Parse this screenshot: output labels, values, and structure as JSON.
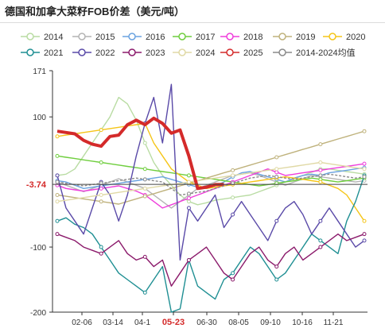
{
  "title": "德国和加拿大菜籽FOB价差（美元/吨）",
  "chart_data": {
    "type": "line",
    "title": "德国和加拿大菜籽FOB价差（美元/吨）",
    "xlabel": "",
    "ylabel": "",
    "ylim": [
      -200,
      171
    ],
    "y_ticks": [
      171,
      100,
      -100,
      -200
    ],
    "x_ticks": [
      "02-06",
      "03-14",
      "04-1",
      "05-23",
      "06-30",
      "08-05",
      "09-10",
      "10-16",
      "11-21"
    ],
    "highlight_x_label": "05-23",
    "reference_value": -3.74,
    "reference_label": "-3.74",
    "grid": false,
    "legend_position": "top",
    "series": [
      {
        "name": "2014",
        "color": "#b9dca3",
        "values": [
          10,
          12,
          20,
          40,
          60,
          80,
          100,
          130,
          120,
          95,
          60,
          30,
          10,
          -5,
          -20,
          -30,
          -35,
          -32,
          -28,
          -26,
          -24,
          -22,
          -20,
          -15,
          -10,
          -5,
          0,
          5,
          10,
          15,
          20,
          20,
          18,
          16,
          14,
          12
        ]
      },
      {
        "name": "2015",
        "color": "#b4b4b4",
        "values": [
          0,
          -5,
          -10,
          -15,
          -10,
          -5,
          0,
          5,
          0,
          -5,
          -10,
          -20,
          -30,
          -40,
          -30,
          -20,
          -10,
          -5,
          0,
          5,
          10,
          12,
          14,
          10,
          5,
          0,
          -5,
          0,
          5,
          10,
          8,
          6,
          4,
          2,
          0,
          2
        ]
      },
      {
        "name": "2016",
        "color": "#6aa3e0",
        "values": [
          2,
          0,
          -5,
          -10,
          -8,
          -6,
          -4,
          -2,
          0,
          2,
          4,
          6,
          8,
          4,
          0,
          -4,
          -8,
          -10,
          -6,
          0,
          8,
          14,
          16,
          12,
          8,
          4,
          0,
          6,
          10,
          12,
          10,
          14,
          16,
          18,
          20,
          22
        ]
      },
      {
        "name": "2017",
        "color": "#6fce3e",
        "values": [
          40,
          38,
          36,
          34,
          32,
          30,
          28,
          26,
          24,
          22,
          20,
          18,
          16,
          14,
          12,
          10,
          8,
          6,
          4,
          2,
          0,
          -2,
          -4,
          -6,
          -4,
          -2,
          0,
          2,
          4,
          6,
          4,
          2,
          0,
          2,
          4,
          6
        ]
      },
      {
        "name": "2018",
        "color": "#ef3ddb",
        "values": [
          -5,
          -10,
          -12,
          -14,
          -12,
          -10,
          -8,
          -6,
          -10,
          -14,
          -20,
          -30,
          -40,
          -35,
          -30,
          -25,
          -20,
          -15,
          -10,
          -5,
          0,
          5,
          10,
          15,
          20,
          15,
          10,
          12,
          14,
          16,
          18,
          20,
          22,
          24,
          26,
          28
        ]
      },
      {
        "name": "2019",
        "color": "#bfb27c",
        "values": [
          -20,
          -22,
          -24,
          -26,
          -28,
          -30,
          -32,
          -34,
          -30,
          -26,
          -22,
          -18,
          -14,
          -10,
          -6,
          -2,
          2,
          6,
          10,
          14,
          18,
          22,
          26,
          30,
          34,
          38,
          42,
          46,
          50,
          54,
          58,
          62,
          66,
          70,
          74,
          78
        ]
      },
      {
        "name": "2020",
        "color": "#f5c518",
        "values": [
          70,
          72,
          74,
          76,
          78,
          80,
          82,
          84,
          86,
          88,
          90,
          60,
          40,
          20,
          10,
          0,
          -5,
          -10,
          -8,
          -6,
          -4,
          -2,
          0,
          2,
          4,
          6,
          8,
          6,
          4,
          2,
          0,
          -5,
          -10,
          -20,
          -40,
          -60
        ]
      },
      {
        "name": "2021",
        "color": "#1f8f93",
        "values": [
          -60,
          -55,
          -65,
          -70,
          -80,
          -100,
          -120,
          -140,
          -150,
          -160,
          -170,
          -150,
          -130,
          -200,
          -195,
          -120,
          -160,
          -170,
          -180,
          -150,
          -140,
          -120,
          -100,
          -110,
          -130,
          -150,
          -140,
          -120,
          -100,
          -80,
          -90,
          -100,
          -110,
          -60,
          -30,
          10
        ]
      },
      {
        "name": "2022",
        "color": "#5a4aa8",
        "values": [
          10,
          -40,
          -60,
          -80,
          -40,
          0,
          -20,
          -60,
          -20,
          40,
          90,
          130,
          60,
          150,
          -120,
          -40,
          -60,
          -40,
          -20,
          -70,
          -50,
          -30,
          -50,
          -70,
          -90,
          -60,
          -40,
          -30,
          -50,
          -80,
          -60,
          -40,
          -60,
          -80,
          -100,
          -90
        ]
      },
      {
        "name": "2023",
        "color": "#8b1a6b",
        "values": [
          -80,
          -85,
          -90,
          -100,
          -105,
          -110,
          -100,
          -90,
          -110,
          -120,
          -115,
          -130,
          -120,
          -160,
          -140,
          -120,
          -110,
          -100,
          -120,
          -140,
          -150,
          -130,
          -110,
          -100,
          -120,
          -130,
          -110,
          -100,
          -120,
          -110,
          -100,
          -90,
          -80,
          -90,
          -85,
          -80
        ]
      },
      {
        "name": "2024",
        "color": "#e0d9a5",
        "values": [
          -30,
          -28,
          -26,
          -24,
          -22,
          -20,
          -18,
          -16,
          -14,
          -12,
          -10,
          -8,
          -6,
          -4,
          -2,
          0,
          2,
          4,
          6,
          8,
          10,
          12,
          14,
          16,
          18,
          20,
          22,
          24,
          26,
          28,
          30,
          28,
          26,
          24,
          22,
          20
        ]
      },
      {
        "name": "2025",
        "color": "#d42a2a",
        "values": [
          78,
          76,
          74,
          64,
          58,
          55,
          70,
          72,
          88,
          95,
          88,
          98,
          90,
          75,
          80,
          40,
          -10,
          -8,
          -4,
          -3.74
        ]
      },
      {
        "name": "2014-2024均值",
        "color": "#8a8a8a",
        "values": [
          0,
          -2,
          -4,
          -6,
          -4,
          -2,
          0,
          2,
          4,
          6,
          4,
          2,
          0,
          -10,
          -20,
          -18,
          -16,
          -14,
          -10,
          -6,
          -2,
          2,
          6,
          8,
          10,
          8,
          6,
          4,
          6,
          8,
          10,
          12,
          10,
          8,
          6,
          8
        ]
      }
    ]
  }
}
